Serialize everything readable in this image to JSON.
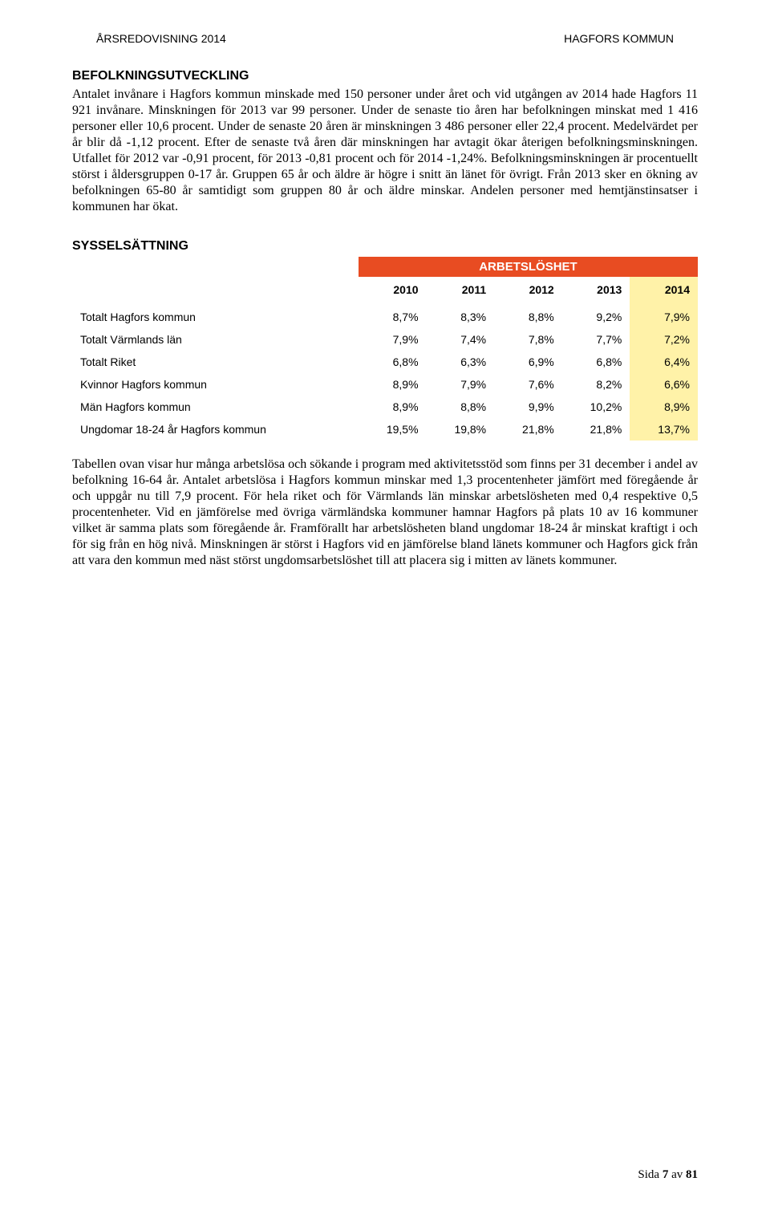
{
  "header": {
    "left": "ÅRSREDOVISNING 2014",
    "right": "HAGFORS KOMMUN"
  },
  "section1": {
    "title": "BEFOLKNINGSUTVECKLING",
    "body": "Antalet invånare i Hagfors kommun minskade med 150 personer under året och vid utgången av 2014 hade Hagfors 11 921 invånare. Minskningen för 2013 var 99 personer. Under de senaste tio åren har befolkningen minskat med 1 416 personer eller 10,6 procent. Under de senaste 20 åren är minskningen 3 486 personer eller 22,4 procent. Medelvärdet per år blir då -1,12 procent. Efter de senaste två åren där minskningen har avtagit ökar återigen befolkningsminskningen. Utfallet för 2012 var -0,91 procent, för 2013 -0,81 procent och för 2014 -1,24%. Befolkningsminskningen är procentuellt störst i åldersgruppen 0-17 år. Gruppen 65 år och äldre är högre i snitt än länet för övrigt. Från 2013 sker en ökning av befolkningen 65-80 år samtidigt som gruppen 80 år och äldre minskar. Andelen personer med hemtjänstinsatser i kommunen har ökat."
  },
  "section2": {
    "title": "SYSSELSÄTTNING",
    "table": {
      "banner": "ARBETSLÖSHET",
      "banner_bg": "#e84c22",
      "highlight_bg": "#fff2a8",
      "years": [
        "2010",
        "2011",
        "2012",
        "2013",
        "2014"
      ],
      "rows": [
        {
          "label": "Totalt Hagfors kommun",
          "vals": [
            "8,7%",
            "8,3%",
            "8,8%",
            "9,2%",
            "7,9%"
          ]
        },
        {
          "label": "Totalt Värmlands län",
          "vals": [
            "7,9%",
            "7,4%",
            "7,8%",
            "7,7%",
            "7,2%"
          ]
        },
        {
          "label": "Totalt Riket",
          "vals": [
            "6,8%",
            "6,3%",
            "6,9%",
            "6,8%",
            "6,4%"
          ]
        },
        {
          "label": "Kvinnor Hagfors kommun",
          "vals": [
            "8,9%",
            "7,9%",
            "7,6%",
            "8,2%",
            "6,6%"
          ]
        },
        {
          "label": "Män Hagfors kommun",
          "vals": [
            "8,9%",
            "8,8%",
            "9,9%",
            "10,2%",
            "8,9%"
          ]
        },
        {
          "label": "Ungdomar 18-24 år Hagfors kommun",
          "vals": [
            "19,5%",
            "19,8%",
            "21,8%",
            "21,8%",
            "13,7%"
          ]
        }
      ]
    },
    "body": "Tabellen ovan visar hur många arbetslösa och sökande i program med aktivitetsstöd som finns per 31 december i andel av befolkning 16-64 år. Antalet arbetslösa i Hagfors kommun minskar med 1,3 procentenheter jämfört med föregående år och uppgår nu till 7,9 procent. För hela riket och för Värmlands län minskar arbetslösheten med 0,4 respektive 0,5 procentenheter. Vid en jämförelse med övriga värmländska kommuner hamnar Hagfors på plats 10 av 16 kommuner vilket är samma plats som föregående år. Framförallt har arbetslösheten bland ungdomar 18-24 år minskat kraftigt i och för sig från en hög nivå. Minskningen är störst i Hagfors vid en jämförelse bland länets kommuner och Hagfors gick från att vara den kommun med näst störst ungdomsarbetslöshet till att placera sig i mitten av länets kommuner."
  },
  "footer": {
    "prefix": "Sida ",
    "page": "7",
    "mid": " av ",
    "total": "81"
  }
}
